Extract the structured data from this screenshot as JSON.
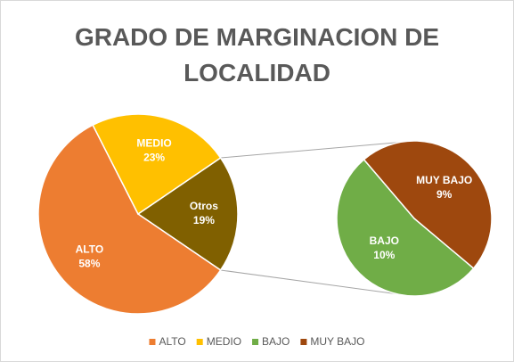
{
  "chart_data": {
    "type": "pie-of-pie",
    "title": "GRADO DE MARGINACION DE LOCALIDAD",
    "categories": [
      "ALTO",
      "MEDIO",
      "BAJO",
      "MUY BAJO"
    ],
    "values": [
      58,
      23,
      10,
      9
    ],
    "value_labels": [
      "58%",
      "23%",
      "10%",
      "9%"
    ],
    "colors": [
      "#ED7D31",
      "#FFC000",
      "#70AD47",
      "#9E480E"
    ],
    "secondary": [
      2,
      3
    ],
    "other": {
      "name": "Otros",
      "value": 19,
      "value_label": "19%",
      "color": "#806000"
    },
    "legend": "bottom"
  }
}
